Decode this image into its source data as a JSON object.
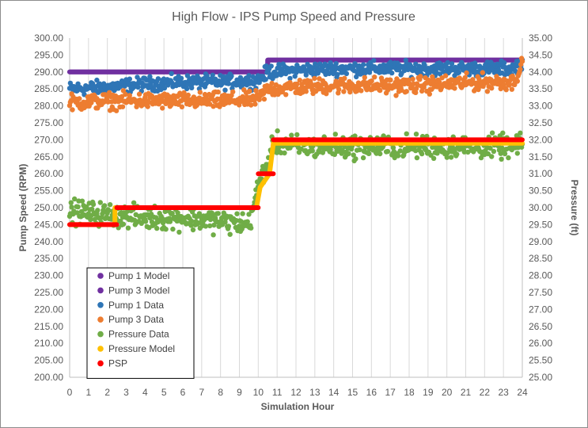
{
  "chart_data": {
    "type": "scatter",
    "title": "High Flow - IPS Pump Speed and Pressure",
    "xlabel": "Simulation Hour",
    "ylabel": "Pump Speed (RPM)",
    "y2label": "Pressure (ft)",
    "xlim": [
      0,
      24
    ],
    "ylim": [
      200,
      300
    ],
    "y2lim": [
      25,
      35
    ],
    "x_ticks": [
      "0",
      "1",
      "2",
      "3",
      "4",
      "5",
      "6",
      "7",
      "8",
      "9",
      "10",
      "11",
      "12",
      "13",
      "14",
      "15",
      "16",
      "17",
      "18",
      "19",
      "20",
      "21",
      "22",
      "23",
      "24"
    ],
    "y_ticks": [
      "200.00",
      "205.00",
      "210.00",
      "215.00",
      "220.00",
      "225.00",
      "230.00",
      "235.00",
      "240.00",
      "245.00",
      "250.00",
      "255.00",
      "260.00",
      "265.00",
      "270.00",
      "275.00",
      "280.00",
      "285.00",
      "290.00",
      "295.00",
      "300.00"
    ],
    "y2_ticks": [
      "25.00",
      "25.50",
      "26.00",
      "26.50",
      "27.00",
      "27.50",
      "28.00",
      "28.50",
      "29.00",
      "29.50",
      "30.00",
      "30.50",
      "31.00",
      "31.50",
      "32.00",
      "32.50",
      "33.00",
      "33.50",
      "34.00",
      "34.50",
      "35.00"
    ],
    "grid": "vertical",
    "legend_position": "inside-bottom-left",
    "series": [
      {
        "name": "Pump 1 Model",
        "axis": "left",
        "style": "line",
        "color": "#7030a0",
        "x": [
          0,
          10.5,
          10.5,
          24
        ],
        "y": [
          290,
          290,
          293.5,
          293.5
        ]
      },
      {
        "name": "Pump 3 Model",
        "axis": "left",
        "style": "line",
        "color": "#7030a0",
        "x": [
          0,
          10.5,
          10.5,
          24
        ],
        "y": [
          290,
          290,
          293.5,
          293.5
        ]
      },
      {
        "name": "Pump 1 Data",
        "axis": "left",
        "style": "band",
        "color": "#2e75b6",
        "x": [
          0,
          2,
          4,
          6,
          8,
          10,
          10.5,
          12,
          14,
          16,
          18,
          20,
          22,
          23.5,
          24
        ],
        "y": [
          285,
          285.5,
          286.5,
          287,
          287,
          287.5,
          290,
          290.5,
          291,
          291,
          291,
          291,
          291,
          291,
          293
        ],
        "spread": 3
      },
      {
        "name": "Pump 3 Data",
        "axis": "left",
        "style": "band",
        "color": "#ed7d31",
        "x": [
          0,
          2,
          4,
          6,
          8,
          10,
          10.5,
          12,
          14,
          16,
          18,
          20,
          22,
          23.5,
          24
        ],
        "y": [
          281,
          281.5,
          281.5,
          281.5,
          281.5,
          282,
          285,
          285.5,
          286,
          286,
          286,
          286.5,
          287,
          287,
          292
        ],
        "spread": 3.5
      },
      {
        "name": "Pressure Data",
        "axis": "right",
        "style": "band",
        "color": "#70ad47",
        "x": [
          0,
          2,
          4,
          6,
          8,
          9.5,
          10,
          10.3,
          10.6,
          10.8,
          12,
          14,
          16,
          18,
          20,
          22,
          24
        ],
        "y": [
          29.9,
          29.8,
          29.7,
          29.7,
          29.6,
          29.5,
          30.6,
          31.1,
          31.3,
          31.9,
          31.8,
          31.8,
          31.8,
          31.8,
          31.8,
          31.8,
          31.8
        ],
        "spread": 0.5
      },
      {
        "name": "Pressure Model",
        "axis": "right",
        "style": "line",
        "color": "#ffc000",
        "x": [
          0,
          2.4,
          2.4,
          9.9,
          10.1,
          10.6,
          10.8,
          24
        ],
        "y": [
          29.5,
          29.5,
          30.0,
          30.0,
          30.6,
          31.0,
          31.9,
          31.9
        ]
      },
      {
        "name": "PSP",
        "axis": "right",
        "style": "segments",
        "color": "#ff0000",
        "segments": [
          {
            "x": [
              0,
              2.5
            ],
            "y": 29.5
          },
          {
            "x": [
              2.5,
              10.0
            ],
            "y": 30.0
          },
          {
            "x": [
              10.0,
              10.8
            ],
            "y": 31.0
          },
          {
            "x": [
              10.8,
              24
            ],
            "y": 32.0
          }
        ]
      }
    ]
  }
}
